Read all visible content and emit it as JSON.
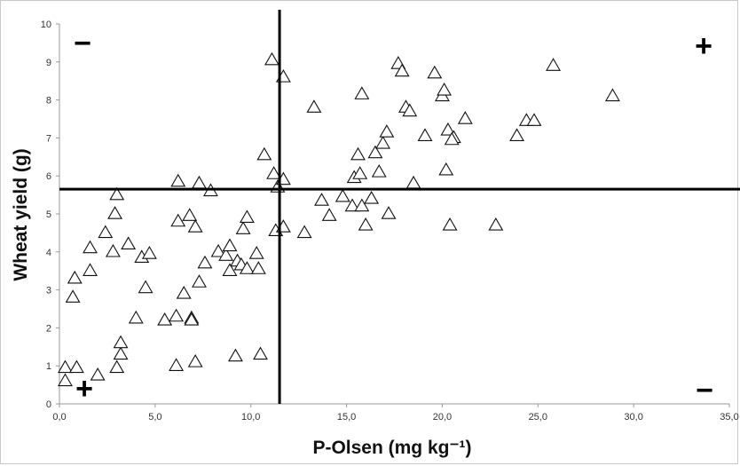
{
  "chart_data": {
    "type": "scatter",
    "title": "",
    "xlabel": "P-Olsen (mg kg⁻¹)",
    "ylabel": "Wheat yield (g)",
    "xlim": [
      0,
      35
    ],
    "ylim": [
      0,
      10
    ],
    "xticks": [
      "0,0",
      "5,0",
      "10,0",
      "15,0",
      "20,0",
      "25,0",
      "30,0",
      "35,0"
    ],
    "yticks": [
      "0",
      "1",
      "2",
      "3",
      "4",
      "5",
      "6",
      "7",
      "8",
      "9",
      "10"
    ],
    "marker": "open-triangle",
    "threshold_x": 11.5,
    "threshold_y": 5.65,
    "quadrant_signs": [
      {
        "sign": "−",
        "position": "top-left"
      },
      {
        "sign": "+",
        "position": "top-right"
      },
      {
        "sign": "+",
        "position": "bottom-left"
      },
      {
        "sign": "−",
        "position": "bottom-right"
      }
    ],
    "points": [
      [
        0.3,
        0.95
      ],
      [
        0.3,
        0.6
      ],
      [
        0.9,
        0.95
      ],
      [
        2.0,
        0.75
      ],
      [
        3.0,
        0.95
      ],
      [
        3.2,
        1.3
      ],
      [
        3.2,
        1.6
      ],
      [
        6.1,
        1.0
      ],
      [
        7.1,
        1.1
      ],
      [
        9.2,
        1.25
      ],
      [
        10.5,
        1.3
      ],
      [
        0.7,
        2.8
      ],
      [
        0.8,
        3.3
      ],
      [
        1.6,
        3.5
      ],
      [
        1.6,
        4.1
      ],
      [
        2.4,
        4.5
      ],
      [
        2.8,
        4.0
      ],
      [
        2.9,
        5.0
      ],
      [
        3.0,
        5.5
      ],
      [
        3.6,
        4.2
      ],
      [
        4.0,
        2.25
      ],
      [
        4.3,
        3.85
      ],
      [
        4.5,
        3.05
      ],
      [
        4.7,
        3.95
      ],
      [
        5.5,
        2.2
      ],
      [
        6.1,
        2.3
      ],
      [
        6.2,
        4.8
      ],
      [
        6.2,
        5.85
      ],
      [
        6.5,
        2.9
      ],
      [
        6.8,
        4.95
      ],
      [
        6.9,
        2.25
      ],
      [
        6.9,
        2.2
      ],
      [
        7.1,
        4.65
      ],
      [
        7.3,
        3.2
      ],
      [
        7.3,
        5.8
      ],
      [
        7.6,
        3.7
      ],
      [
        7.9,
        5.6
      ],
      [
        8.3,
        4.0
      ],
      [
        8.7,
        3.9
      ],
      [
        8.9,
        3.5
      ],
      [
        8.9,
        4.15
      ],
      [
        9.3,
        3.75
      ],
      [
        9.5,
        3.65
      ],
      [
        9.6,
        4.6
      ],
      [
        9.8,
        3.55
      ],
      [
        9.8,
        4.9
      ],
      [
        10.3,
        3.95
      ],
      [
        10.4,
        3.55
      ],
      [
        10.7,
        6.55
      ],
      [
        11.1,
        9.05
      ],
      [
        11.2,
        6.05
      ],
      [
        11.3,
        4.55
      ],
      [
        11.4,
        5.7
      ],
      [
        11.7,
        4.65
      ],
      [
        11.7,
        5.9
      ],
      [
        11.7,
        8.6
      ],
      [
        12.8,
        4.5
      ],
      [
        13.3,
        7.8
      ],
      [
        13.7,
        5.35
      ],
      [
        14.1,
        4.95
      ],
      [
        14.8,
        5.45
      ],
      [
        15.3,
        5.2
      ],
      [
        15.4,
        5.95
      ],
      [
        15.6,
        6.55
      ],
      [
        15.7,
        6.05
      ],
      [
        15.8,
        8.15
      ],
      [
        15.8,
        5.2
      ],
      [
        16.0,
        4.7
      ],
      [
        16.3,
        5.4
      ],
      [
        16.5,
        6.6
      ],
      [
        16.7,
        6.1
      ],
      [
        16.9,
        6.85
      ],
      [
        17.1,
        7.15
      ],
      [
        17.2,
        5.0
      ],
      [
        17.7,
        8.95
      ],
      [
        17.9,
        8.75
      ],
      [
        18.1,
        7.8
      ],
      [
        18.3,
        7.7
      ],
      [
        18.5,
        5.8
      ],
      [
        19.1,
        7.05
      ],
      [
        19.6,
        8.7
      ],
      [
        20.0,
        8.1
      ],
      [
        20.1,
        8.25
      ],
      [
        20.2,
        6.15
      ],
      [
        20.3,
        7.2
      ],
      [
        20.4,
        4.7
      ],
      [
        20.6,
        7.0
      ],
      [
        20.5,
        6.95
      ],
      [
        21.2,
        7.5
      ],
      [
        22.8,
        4.7
      ],
      [
        23.9,
        7.05
      ],
      [
        24.4,
        7.45
      ],
      [
        24.8,
        7.45
      ],
      [
        25.8,
        8.9
      ],
      [
        28.9,
        8.1
      ]
    ]
  }
}
